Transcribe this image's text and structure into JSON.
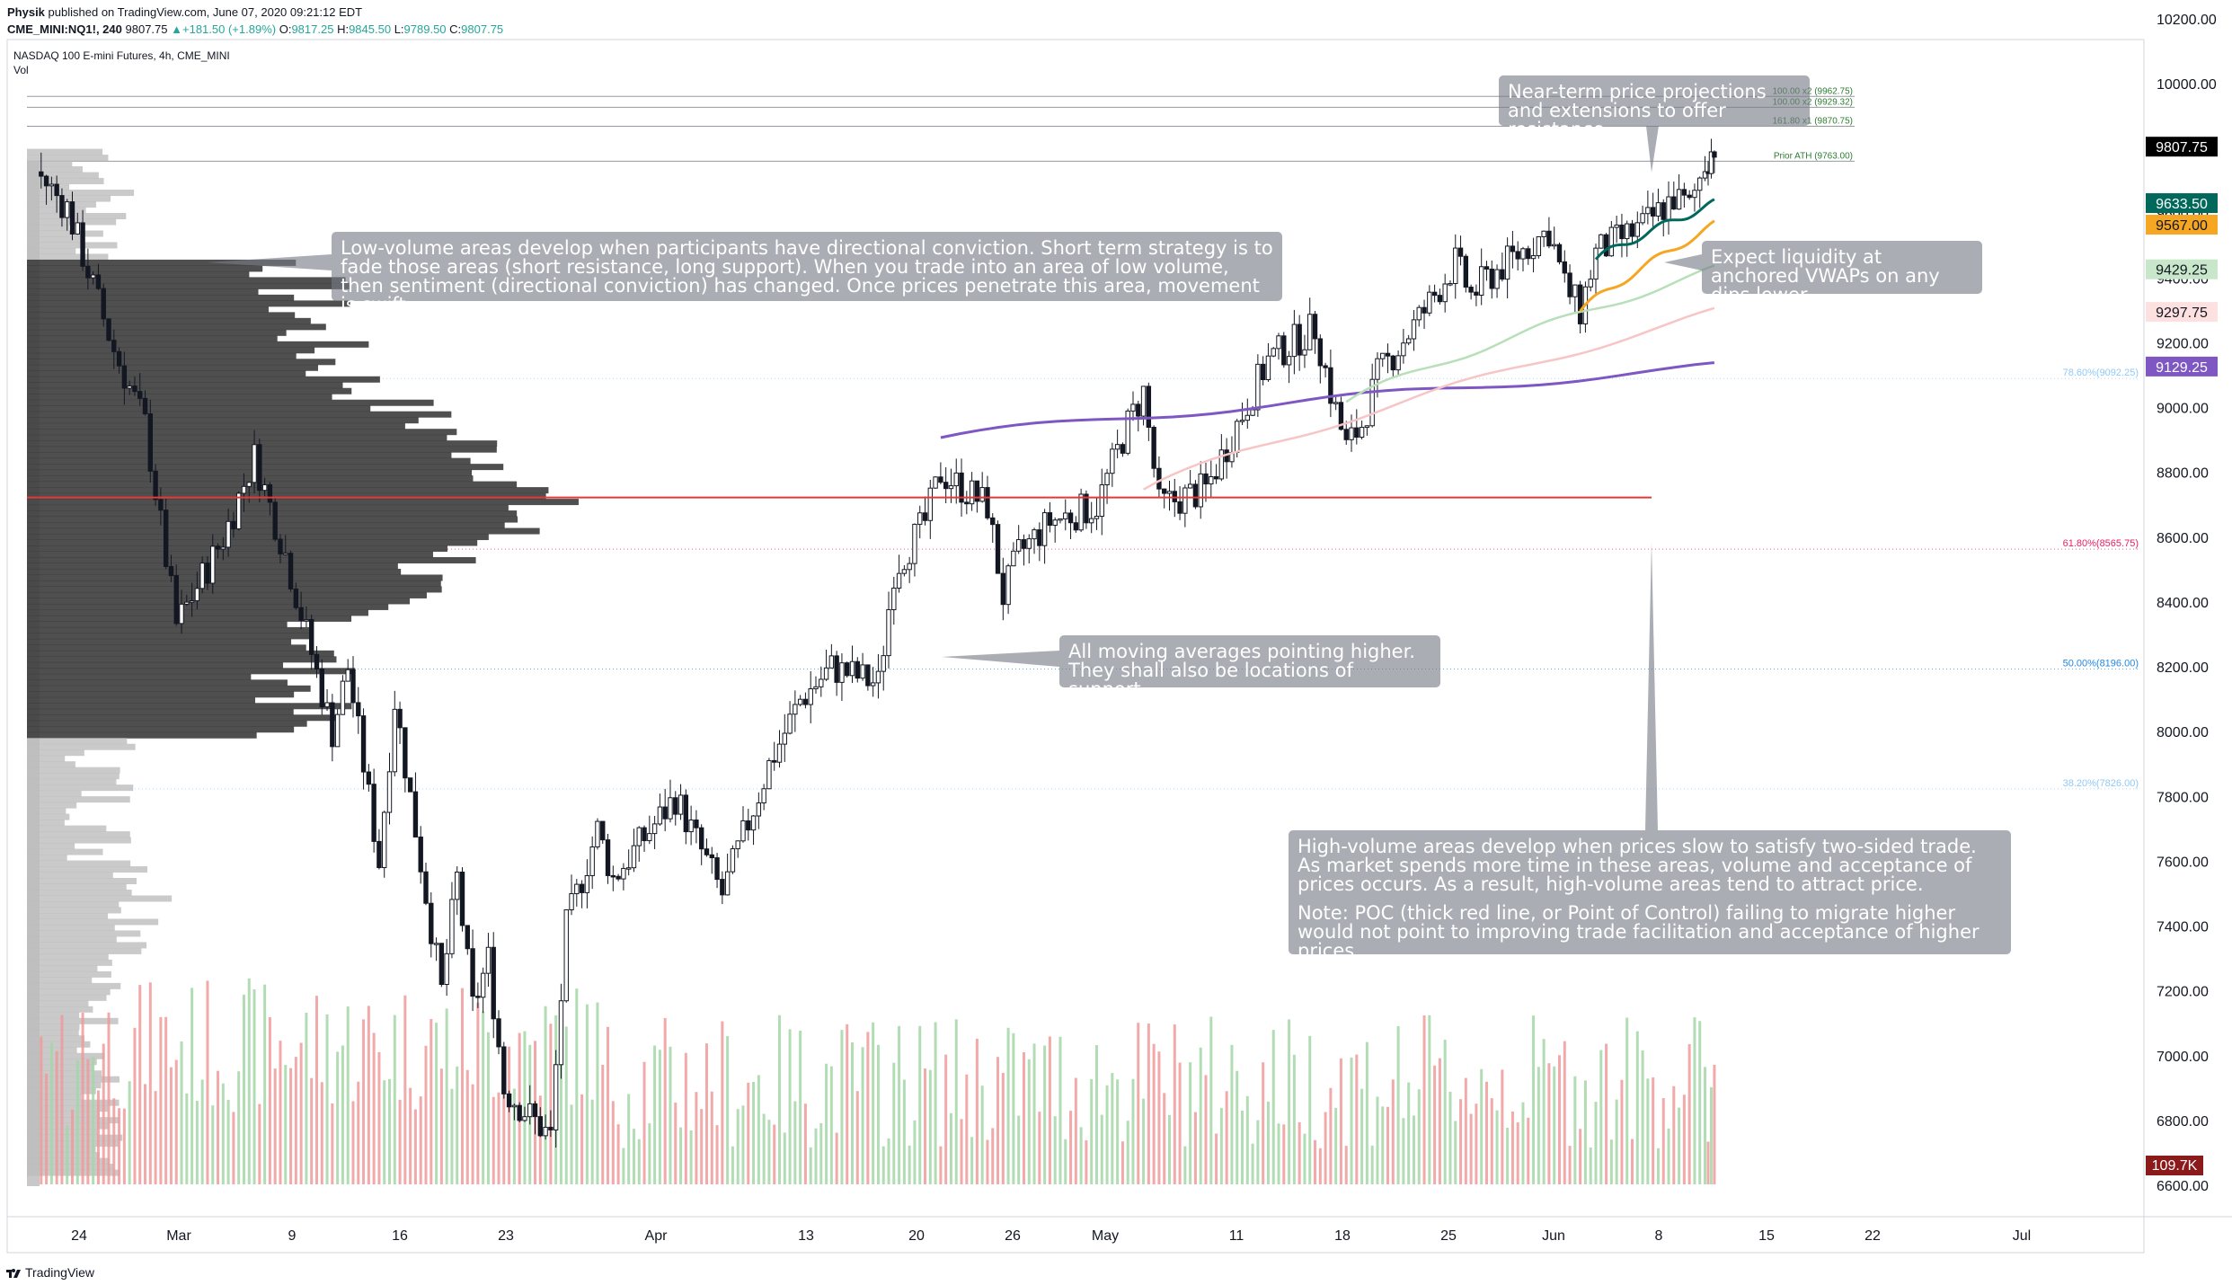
{
  "header": {
    "author": "Physik",
    "published": "published on TradingView.com, June 07, 2020 09:21:12 EDT",
    "symbol": "CME_MINI:NQ1!, 240",
    "last": "9807.75",
    "change": "+181.50 (+1.89%)",
    "o_label": "O:",
    "o_value": "9817.25",
    "h_label": "H:",
    "h_value": "9845.50",
    "l_label": "L:",
    "l_value": "9789.50",
    "c_label": "C:",
    "c_value": "9807.75"
  },
  "chart_title": "NASDAQ 100 E-mini Futures, 4h, CME_MINI",
  "volume_label": "Vol",
  "branding": "TradingView",
  "notes": {
    "projections": "Near-term price projections and extensions to offer resistance.",
    "low_volume": "Low-volume areas develop when participants have directional conviction. Short term strategy is to fade those areas (short resistance, long support). When you trade into an area of low volume, then sentiment (directional conviction) has changed. Once prices penetrate this area, movement is swift.",
    "vwap": "Expect liquidity at anchored VWAPs on any dips lower.",
    "moving_averages": "All moving averages pointing higher. They shall also be locations of support.",
    "high_volume_1": "High-volume areas develop when prices slow to satisfy two-sided trade. As market spends more time in these areas, volume and acceptance of prices occurs. As a result, high-volume areas tend to attract price.",
    "high_volume_2": "Note: POC (thick red line, or Point of Control) failing to migrate higher would not point to improving trade facilitation and acceptance of higher prices."
  },
  "colors": {
    "up": "#26a69a",
    "down": "#131722",
    "poc": "#e53935",
    "ma_dark_green": "#00695c",
    "ma_orange": "#f5a623",
    "ma_light_green": "#b7dfb8",
    "ma_pink": "#f7c5c5",
    "ma_purple": "#7e57c2",
    "vol_up": "#a5d6a7",
    "vol_down": "#ef9a9a"
  },
  "chart_data": {
    "type": "candlestick",
    "title": "NASDAQ 100 E-mini Futures, 4h, CME_MINI",
    "ylim": [
      6500,
      10350
    ],
    "price_axis_ticks": [
      "10200.00",
      "10000.00",
      "9800.00",
      "9600.00",
      "9400.00",
      "9200.00",
      "9000.00",
      "8800.00",
      "8600.00",
      "8400.00",
      "8200.00",
      "8000.00",
      "7800.00",
      "7600.00",
      "7400.00",
      "7200.00",
      "7000.00",
      "6800.00",
      "6600.00"
    ],
    "time_axis_ticks": [
      "24",
      "Mar",
      "9",
      "16",
      "23",
      "Apr",
      "13",
      "20",
      "26",
      "May",
      "11",
      "18",
      "25",
      "Jun",
      "8",
      "15",
      "22",
      "Jul"
    ],
    "price_path": [
      {
        "d": "Feb 19",
        "p": 9730
      },
      {
        "d": "Feb 21",
        "p": 9620
      },
      {
        "d": "Feb 24",
        "p": 9180
      },
      {
        "d": "Feb 26",
        "p": 8950
      },
      {
        "d": "Feb 28",
        "p": 8330
      },
      {
        "d": "Mar 2",
        "p": 8600
      },
      {
        "d": "Mar 4",
        "p": 8850
      },
      {
        "d": "Mar 6",
        "p": 8550
      },
      {
        "d": "Mar 9",
        "p": 8000
      },
      {
        "d": "Mar 10",
        "p": 8200
      },
      {
        "d": "Mar 12",
        "p": 7600
      },
      {
        "d": "Mar 13",
        "p": 8100
      },
      {
        "d": "Mar 16",
        "p": 7200
      },
      {
        "d": "Mar 17",
        "p": 7550
      },
      {
        "d": "Mar 18",
        "p": 7150
      },
      {
        "d": "Mar 19",
        "p": 7300
      },
      {
        "d": "Mar 20",
        "p": 6900
      },
      {
        "d": "Mar 23",
        "p": 6750
      },
      {
        "d": "Mar 24",
        "p": 7400
      },
      {
        "d": "Mar 26",
        "p": 7700
      },
      {
        "d": "Mar 27",
        "p": 7550
      },
      {
        "d": "Mar 31",
        "p": 7800
      },
      {
        "d": "Apr 3",
        "p": 7500
      },
      {
        "d": "Apr 6",
        "p": 7900
      },
      {
        "d": "Apr 8",
        "p": 8100
      },
      {
        "d": "Apr 10",
        "p": 8200
      },
      {
        "d": "Apr 13",
        "p": 8150
      },
      {
        "d": "Apr 14",
        "p": 8500
      },
      {
        "d": "Apr 16",
        "p": 8650
      },
      {
        "d": "Apr 17",
        "p": 8800
      },
      {
        "d": "Apr 20",
        "p": 8700
      },
      {
        "d": "Apr 21",
        "p": 8420
      },
      {
        "d": "Apr 22",
        "p": 8550
      },
      {
        "d": "Apr 24",
        "p": 8650
      },
      {
        "d": "Apr 27",
        "p": 8700
      },
      {
        "d": "Apr 29",
        "p": 8950
      },
      {
        "d": "Apr 30",
        "p": 9050
      },
      {
        "d": "May 1",
        "p": 8700
      },
      {
        "d": "May 4",
        "p": 8750
      },
      {
        "d": "May 6",
        "p": 8950
      },
      {
        "d": "May 8",
        "p": 9150
      },
      {
        "d": "May 11",
        "p": 9250
      },
      {
        "d": "May 12",
        "p": 9050
      },
      {
        "d": "May 13",
        "p": 8880
      },
      {
        "d": "May 14",
        "p": 8950
      },
      {
        "d": "May 15",
        "p": 9100
      },
      {
        "d": "May 18",
        "p": 9300
      },
      {
        "d": "May 20",
        "p": 9450
      },
      {
        "d": "May 21",
        "p": 9350
      },
      {
        "d": "May 22",
        "p": 9400
      },
      {
        "d": "May 26",
        "p": 9550
      },
      {
        "d": "May 27",
        "p": 9380
      },
      {
        "d": "May 28",
        "p": 9300
      },
      {
        "d": "May 29",
        "p": 9480
      },
      {
        "d": "Jun 1",
        "p": 9560
      },
      {
        "d": "Jun 3",
        "p": 9650
      },
      {
        "d": "Jun 4",
        "p": 9620
      },
      {
        "d": "Jun 5",
        "p": 9760
      },
      {
        "d": "Jun 5 pm",
        "p": 9808
      }
    ],
    "horizontal_levels": [
      {
        "label": "100.00 x2 (9962.75)",
        "value": 9962.75
      },
      {
        "label": "100.00 x2 (9929.32)",
        "value": 9929.32
      },
      {
        "label": "161.80 x1 (9870.75)",
        "value": 9870.75
      },
      {
        "label": "Prior ATH (9763.00)",
        "value": 9763.0
      },
      {
        "label": "78.60%(9092.25)",
        "value": 9092.25
      },
      {
        "label": "61.80%(8565.75)",
        "value": 8565.75
      },
      {
        "label": "50.00%(8196.00)",
        "value": 8196.0
      },
      {
        "label": "38.20%(7826.00)",
        "value": 7826.0
      }
    ],
    "poc_level": 8725,
    "price_labels": [
      {
        "text": "9807.75",
        "value": 9807.75,
        "bg": "#000000",
        "fg": "#ffffff"
      },
      {
        "text": "9633.50",
        "value": 9633.5,
        "bg": "#00695c",
        "fg": "#ffffff"
      },
      {
        "text": "9567.00",
        "value": 9567.0,
        "bg": "#f5a623",
        "fg": "#131722"
      },
      {
        "text": "9429.25",
        "value": 9429.25,
        "bg": "#c8e6c9",
        "fg": "#131722"
      },
      {
        "text": "9297.75",
        "value": 9297.75,
        "bg": "#fde0e0",
        "fg": "#131722"
      },
      {
        "text": "9129.25",
        "value": 9129.25,
        "bg": "#7e57c2",
        "fg": "#ffffff"
      }
    ],
    "volume_label": {
      "text": "109.7K",
      "bg": "#8b1a1a",
      "fg": "#ffffff"
    },
    "moving_averages": [
      {
        "color": "#7e57c2",
        "start": "Apr 17",
        "start_value": 8910,
        "end_value": 9129.25
      },
      {
        "color": "#f7c5c5",
        "start": "Apr 30",
        "start_value": 8750,
        "end_value": 9297.75
      },
      {
        "color": "#b7dfb8",
        "start": "May 13",
        "start_value": 9020,
        "end_value": 9429.25
      },
      {
        "color": "#f5a623",
        "start": "May 28",
        "start_value": 9300,
        "end_value": 9567.0
      },
      {
        "color": "#00695c",
        "start": "May 29",
        "start_value": 9460,
        "end_value": 9633.5
      }
    ]
  }
}
